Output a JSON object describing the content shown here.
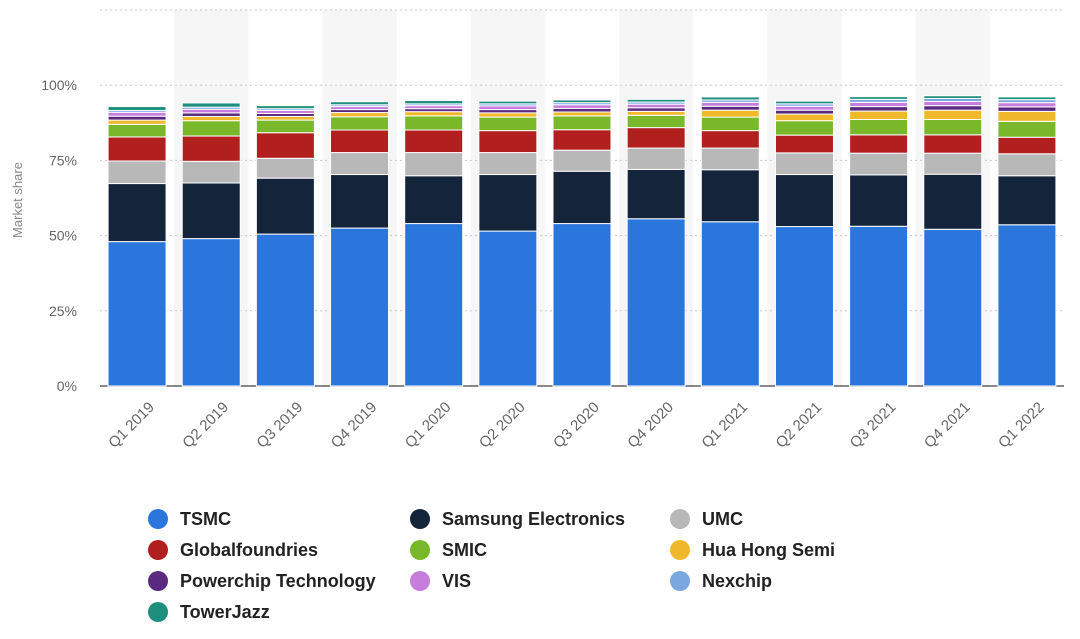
{
  "chart_data": {
    "type": "bar",
    "stacked": true,
    "title": "",
    "xlabel": "",
    "ylabel": "Market share",
    "ylim": [
      0,
      125
    ],
    "yticks": [
      0,
      25,
      50,
      75,
      100
    ],
    "ytick_labels": [
      "0%",
      "25%",
      "50%",
      "75%",
      "100%"
    ],
    "grid": true,
    "legend_position": "bottom",
    "categories": [
      "Q1 2019",
      "Q2 2019",
      "Q3 2019",
      "Q4 2019",
      "Q1 2020",
      "Q2 2020",
      "Q3 2020",
      "Q4 2020",
      "Q1 2021",
      "Q2 2021",
      "Q3 2021",
      "Q4 2021",
      "Q1 2022"
    ],
    "series": [
      {
        "name": "TSMC",
        "color": "#2a76dd",
        "values": [
          48,
          49,
          50.5,
          52.5,
          54,
          51.5,
          54,
          55.6,
          54.6,
          53,
          53.1,
          52.1,
          53.6
        ]
      },
      {
        "name": "Samsung Electronics",
        "color": "#14243b",
        "values": [
          19.3,
          18.5,
          18.6,
          17.8,
          15.9,
          18.8,
          17.4,
          16.4,
          17.3,
          17.3,
          17.1,
          18.3,
          16.3
        ]
      },
      {
        "name": "UMC",
        "color": "#b8b8b8",
        "values": [
          7.5,
          7.2,
          6.6,
          7.3,
          7.7,
          7.3,
          7.0,
          7.1,
          7.2,
          7.2,
          7.2,
          7.0,
          7.3
        ]
      },
      {
        "name": "Globalfoundries",
        "color": "#b11f1f",
        "values": [
          8.0,
          8.4,
          8.5,
          7.5,
          7.5,
          7.3,
          6.8,
          6.8,
          5.8,
          5.9,
          6.1,
          6.1,
          5.5
        ]
      },
      {
        "name": "SMIC",
        "color": "#7ab82b",
        "values": [
          4.2,
          5.1,
          4.2,
          4.4,
          4.7,
          4.5,
          4.6,
          4.1,
          4.5,
          4.8,
          5.1,
          5.1,
          5.3
        ]
      },
      {
        "name": "Hua Hong Semi",
        "color": "#efb92b",
        "values": [
          1.4,
          1.4,
          1.2,
          1.4,
          1.4,
          1.4,
          1.3,
          1.3,
          2.3,
          2.2,
          2.8,
          3.1,
          3.3
        ]
      },
      {
        "name": "Powerchip Technology",
        "color": "#5a2a7e",
        "values": [
          1.3,
          1.2,
          1.0,
          1.0,
          1.0,
          1.1,
          1.2,
          1.2,
          1.3,
          1.3,
          1.5,
          1.5,
          1.5
        ]
      },
      {
        "name": "VIS",
        "color": "#c77ddb",
        "values": [
          1.3,
          1.2,
          1.0,
          1.0,
          1.0,
          1.2,
          1.2,
          1.2,
          1.3,
          1.3,
          1.4,
          1.4,
          1.4
        ]
      },
      {
        "name": "Nexchip",
        "color": "#7ba7e0",
        "values": [
          0.6,
          0.7,
          0.6,
          0.6,
          0.6,
          0.7,
          0.7,
          0.7,
          0.8,
          0.8,
          1.0,
          1.0,
          1.0
        ]
      },
      {
        "name": "TowerJazz",
        "color": "#1e8f7d",
        "values": [
          1.3,
          1.4,
          1.0,
          1.0,
          1.1,
          0.9,
          0.9,
          0.9,
          1.0,
          0.9,
          0.9,
          0.9,
          0.9
        ]
      }
    ]
  },
  "legend": {
    "items": [
      {
        "label": "TSMC",
        "color": "#2a76dd"
      },
      {
        "label": "Samsung Electronics",
        "color": "#14243b"
      },
      {
        "label": "UMC",
        "color": "#b8b8b8"
      },
      {
        "label": "Globalfoundries",
        "color": "#b11f1f"
      },
      {
        "label": "SMIC",
        "color": "#7ab82b"
      },
      {
        "label": "Hua Hong Semi",
        "color": "#efb92b"
      },
      {
        "label": "Powerchip Technology",
        "color": "#5a2a7e"
      },
      {
        "label": "VIS",
        "color": "#c77ddb"
      },
      {
        "label": "Nexchip",
        "color": "#7ba7e0"
      },
      {
        "label": "TowerJazz",
        "color": "#1e8f7d"
      }
    ]
  }
}
